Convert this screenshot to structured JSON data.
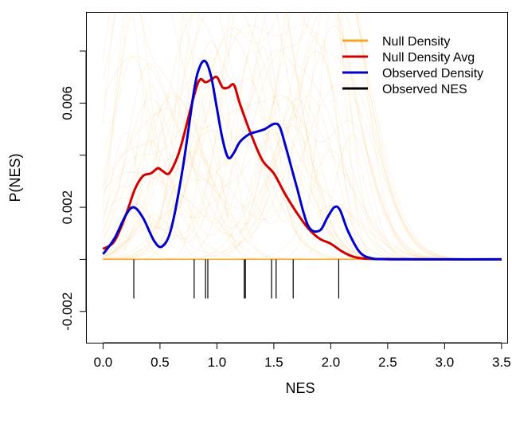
{
  "chart_data": {
    "type": "line",
    "title": "",
    "xlabel": "NES",
    "ylabel": "P(NES)",
    "xlim": [
      -0.15,
      3.55
    ],
    "ylim": [
      -0.0032,
      0.0095
    ],
    "x_ticks": [
      {
        "value": 0.0,
        "label": "0.0"
      },
      {
        "value": 0.5,
        "label": "0.5"
      },
      {
        "value": 1.0,
        "label": "1.0"
      },
      {
        "value": 1.5,
        "label": "1.5"
      },
      {
        "value": 2.0,
        "label": "2.0"
      },
      {
        "value": 2.5,
        "label": "2.5"
      },
      {
        "value": 3.0,
        "label": "3.0"
      },
      {
        "value": 3.5,
        "label": "3.5"
      }
    ],
    "y_ticks": [
      {
        "value": -0.002,
        "label": "-0.002"
      },
      {
        "value": 0.0,
        "label": ""
      },
      {
        "value": 0.002,
        "label": "0.002"
      },
      {
        "value": 0.004,
        "label": ""
      },
      {
        "value": 0.006,
        "label": "0.006"
      },
      {
        "value": 0.008,
        "label": ""
      }
    ],
    "legend": {
      "placement": "top-right",
      "entries": [
        {
          "label": "Null Density",
          "color": "#f5a623"
        },
        {
          "label": "Null Density Avg",
          "color": "#d00000"
        },
        {
          "label": "Observed Density",
          "color": "#0000cc"
        },
        {
          "label": "Observed NES",
          "color": "#000000"
        }
      ]
    },
    "series": [
      {
        "name": "Null Density Avg",
        "color": "#d00000",
        "x": [
          0.0,
          0.1,
          0.2,
          0.28,
          0.35,
          0.42,
          0.48,
          0.52,
          0.58,
          0.65,
          0.7,
          0.8,
          0.85,
          0.9,
          0.95,
          1.0,
          1.05,
          1.1,
          1.15,
          1.2,
          1.3,
          1.4,
          1.5,
          1.6,
          1.7,
          1.8,
          1.9,
          2.0,
          2.1,
          2.2,
          2.3,
          2.45,
          2.6,
          3.0,
          3.5
        ],
        "values": [
          0.0004,
          0.0007,
          0.0017,
          0.0027,
          0.0032,
          0.0033,
          0.0035,
          0.0034,
          0.0033,
          0.0039,
          0.0046,
          0.0063,
          0.0069,
          0.0068,
          0.0069,
          0.007,
          0.0066,
          0.0066,
          0.0067,
          0.006,
          0.0048,
          0.0038,
          0.0033,
          0.0025,
          0.0018,
          0.0012,
          0.0008,
          0.0006,
          0.0003,
          0.0001,
          3e-05,
          1e-05,
          0.0,
          0.0,
          0.0
        ]
      },
      {
        "name": "Observed Density",
        "color": "#0000cc",
        "x": [
          0.0,
          0.1,
          0.2,
          0.27,
          0.35,
          0.45,
          0.52,
          0.6,
          0.7,
          0.8,
          0.85,
          0.9,
          0.95,
          1.0,
          1.05,
          1.1,
          1.15,
          1.2,
          1.28,
          1.35,
          1.42,
          1.5,
          1.55,
          1.6,
          1.7,
          1.8,
          1.9,
          1.97,
          2.03,
          2.08,
          2.15,
          2.25,
          2.35,
          2.5,
          3.0,
          3.5
        ],
        "values": [
          0.0002,
          0.0008,
          0.0017,
          0.002,
          0.0016,
          0.0007,
          0.0005,
          0.0012,
          0.0035,
          0.0065,
          0.0074,
          0.0076,
          0.007,
          0.0058,
          0.0046,
          0.0039,
          0.0041,
          0.0045,
          0.0048,
          0.0049,
          0.005,
          0.0052,
          0.0051,
          0.0044,
          0.0028,
          0.0013,
          0.0011,
          0.0016,
          0.002,
          0.0019,
          0.0011,
          0.0003,
          5e-05,
          1e-05,
          0.0,
          0.0
        ]
      }
    ],
    "observed_nes": [
      0.27,
      0.8,
      0.9,
      0.92,
      1.24,
      1.25,
      1.48,
      1.52,
      1.67,
      2.07
    ],
    "rug_range": [
      -0.0015,
      0.0
    ]
  }
}
